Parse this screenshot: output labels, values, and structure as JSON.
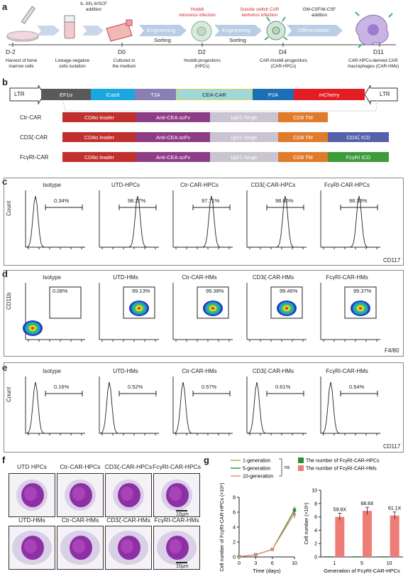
{
  "panel_labels": {
    "a": "a",
    "b": "b",
    "c": "c",
    "d": "d",
    "e": "e",
    "f": "f",
    "g": "g"
  },
  "a": {
    "steps": [
      {
        "above": "",
        "below": "Harvest of bone\nmarrow cells"
      },
      {
        "above": "IL-3/IL-6/SCF\naddition",
        "below": "Lineage-negative\ncells isolation"
      },
      {
        "above": "",
        "below": "Cultured in\nthe medium"
      },
      {
        "above": "Hoxb8\nretrovirus infection",
        "below": "Hoxb8-progenitors\n(HPCs)"
      },
      {
        "above": "Suicide switch CAR\nlentivirus infection",
        "below": "CAR-Hoxb8-progenitors\n(CAR-HPCs)"
      },
      {
        "above": "GM-CSF/M-CSF\naddition",
        "below": "CAR-HPCs-derived CAR\nmacrophages (CAR-HMs)"
      }
    ],
    "arrow_labels": [
      "Engineering",
      "Engineering",
      "Differentiation"
    ],
    "sub_labels": [
      "Sorting",
      "Sorting"
    ],
    "days": [
      "D-2",
      "D0",
      "D2",
      "D4",
      "D11"
    ]
  },
  "b": {
    "ltr_left": "LTR",
    "ltr_right": "LTR",
    "construct": [
      {
        "label": "EF1α",
        "color": "#5a5a5a"
      },
      {
        "label": "iCas9",
        "color": "#1aa6df"
      },
      {
        "label": "T2A",
        "color": "#8a7fb5"
      },
      {
        "label": "CEA-CAR",
        "color": "#9fd8db"
      },
      {
        "label": "P2A",
        "color": "#1b6fb5"
      },
      {
        "label": "mCherry",
        "color": "#e21d24"
      }
    ],
    "cars": [
      {
        "name": "Ctr-CAR",
        "segments": [
          "CD8α leader",
          "Anti-CEA  scFv",
          "IgG1 hinge",
          "CD8 TM"
        ]
      },
      {
        "name": "CD3ζ-CAR",
        "segments": [
          "CD8α leader",
          "Anti-CEA  scFv",
          "IgG1 hinge",
          "CD8 TM",
          "CD3ζ ICD"
        ]
      },
      {
        "name": "FcγRI-CAR",
        "segments": [
          "CD8α leader",
          "Anti-CEA  scFv",
          "IgG1 hinge",
          "CD8 TM",
          "FcγRI ICD"
        ]
      }
    ],
    "segment_colors": {
      "leader": "#c0302c",
      "scfv": "#8e3c86",
      "hinge": "#c9c4cf",
      "tm": "#e07b2c",
      "cd3z": "#5561a8",
      "fcgri": "#3e9b3a"
    }
  },
  "c": {
    "titles": [
      "Isotype",
      "UTD-HPCs",
      "Ctr-CAR-HPCs",
      "CD3ζ-CAR-HPCs",
      "FcγRI-CAR-HPCs"
    ],
    "pcts": [
      "0.34%",
      "98.27%",
      "97.71%",
      "98.66%",
      "98.38%"
    ],
    "ylabel": "Count",
    "xlabel": "CD117"
  },
  "d": {
    "titles": [
      "Isotype",
      "UTD-HMs",
      "Ctr-CAR-HMs",
      "CD3ζ-CAR-HMs",
      "FcγRI-CAR-HMs"
    ],
    "pcts": [
      "0.08%",
      "99.13%",
      "99.38%",
      "99.46%",
      "99.37%"
    ],
    "ylabel": "CD11b",
    "xlabel": "F4/80"
  },
  "e": {
    "titles": [
      "Isotype",
      "UTD-HMs",
      "Ctr-CAR-HMs",
      "CD3ζ-CAR-HMs",
      "FcγRI-CAR-HMs"
    ],
    "pcts": [
      "0.16%",
      "0.52%",
      "0.57%",
      "0.61%",
      "0.54%"
    ],
    "ylabel": "Count",
    "xlabel": "CD117"
  },
  "f": {
    "top_labels": [
      "UTD HPCs",
      "Ctr-CAR-HPCs",
      "CD3ζ-CAR-HPCs",
      "FcγRI-CAR-HPCs"
    ],
    "bottom_labels": [
      "UTD-HMs",
      "Ctr-CAR-HMs",
      "CD3ζ-CAR-HMs",
      "FcγRI-CAR-HMs"
    ],
    "scale": "10μm"
  },
  "chart_data": [
    {
      "type": "line",
      "legend": [
        "1-generation",
        "5-generation",
        "10-generation"
      ],
      "legend_colors": [
        "#9cb45a",
        "#2f9a3a",
        "#f08a80"
      ],
      "xlabel": "Time (days)",
      "ylabel": "Cell number of FcγRI-CAR-HPCs (×10⁸)",
      "x": [
        0,
        3,
        6,
        10
      ],
      "xticks": [
        "0",
        "3",
        "6",
        "10"
      ],
      "yticks": [
        "0",
        "2",
        "4",
        "6",
        "8"
      ],
      "ylim": [
        0,
        8
      ],
      "series": [
        {
          "name": "1-generation",
          "values": [
            0.05,
            0.3,
            1.0,
            6.2
          ]
        },
        {
          "name": "5-generation",
          "values": [
            0.05,
            0.3,
            1.0,
            6.3
          ]
        },
        {
          "name": "10-generation",
          "values": [
            0.05,
            0.3,
            1.0,
            5.8
          ]
        }
      ],
      "annotation": "ns"
    },
    {
      "type": "bar",
      "legend": [
        "The number of FcγRI-CAR-HPCs",
        "The number of FcγRI-CAR-HMs"
      ],
      "legend_colors": [
        "#2f8a3a",
        "#ef7d77"
      ],
      "categories": [
        "1",
        "5",
        "10"
      ],
      "xlabel": "Generation of FcγRI-CAR-HPCs",
      "ylabel": "Cell number (×10⁶)",
      "yticks": [
        "0",
        "2",
        "4",
        "6",
        "8",
        "10"
      ],
      "ylim": [
        0,
        10
      ],
      "series": [
        {
          "name": "The number of FcγRI-CAR-HPCs",
          "values": [
            0.1,
            0.1,
            0.1
          ]
        },
        {
          "name": "The number of FcγRI-CAR-HMs",
          "values": [
            6.0,
            6.9,
            6.2
          ]
        }
      ],
      "fold_labels": [
        "59.6X",
        "68.8X",
        "61.1X"
      ]
    }
  ]
}
